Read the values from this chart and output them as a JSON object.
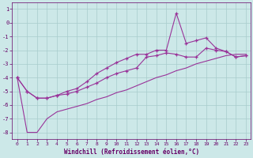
{
  "xlabel": "Windchill (Refroidissement éolien,°C)",
  "background_color": "#cce8e8",
  "grid_color": "#a8cccc",
  "line_color": "#993399",
  "xlim_min": -0.5,
  "xlim_max": 23.5,
  "ylim_min": -8.5,
  "ylim_max": 1.5,
  "xticks": [
    0,
    1,
    2,
    3,
    4,
    5,
    6,
    7,
    8,
    9,
    10,
    11,
    12,
    13,
    14,
    15,
    16,
    17,
    18,
    19,
    20,
    21,
    22,
    23
  ],
  "yticks": [
    -8,
    -7,
    -6,
    -5,
    -4,
    -3,
    -2,
    -1,
    0,
    1
  ],
  "line1_x": [
    0,
    1,
    2,
    3,
    4,
    5,
    6,
    7,
    8,
    9,
    10,
    11,
    12,
    13,
    14,
    15,
    16,
    17,
    18,
    19,
    20,
    21,
    22,
    23
  ],
  "line1_y": [
    -4.0,
    -5.0,
    -5.5,
    -5.5,
    -5.3,
    -5.2,
    -5.0,
    -4.7,
    -4.4,
    -4.0,
    -3.7,
    -3.5,
    -3.3,
    -2.5,
    -2.4,
    -2.2,
    -2.3,
    -2.5,
    -2.5,
    -1.85,
    -2.0,
    -2.1,
    -2.5,
    -2.4
  ],
  "line2_x": [
    0,
    1,
    2,
    3,
    4,
    5,
    6,
    7,
    8,
    9,
    10,
    11,
    12,
    13,
    14,
    15,
    16,
    17,
    18,
    19,
    20,
    21,
    22,
    23
  ],
  "line2_y": [
    -4.0,
    -5.0,
    -5.5,
    -5.5,
    -5.3,
    -5.0,
    -4.8,
    -4.3,
    -3.7,
    -3.3,
    -2.9,
    -2.6,
    -2.3,
    -2.3,
    -2.0,
    -2.0,
    0.7,
    -1.5,
    -1.3,
    -1.1,
    -1.85,
    -2.1,
    -2.5,
    -2.4
  ],
  "line3_x": [
    0,
    1,
    2,
    3,
    4,
    5,
    6,
    7,
    8,
    9,
    10,
    11,
    12,
    13,
    14,
    15,
    16,
    17,
    18,
    19,
    20,
    21,
    22,
    23
  ],
  "line3_y": [
    -4.0,
    -8.0,
    -8.0,
    -7.0,
    -6.5,
    -6.3,
    -6.1,
    -5.9,
    -5.6,
    -5.4,
    -5.1,
    -4.9,
    -4.6,
    -4.3,
    -4.0,
    -3.8,
    -3.5,
    -3.3,
    -3.0,
    -2.8,
    -2.6,
    -2.4,
    -2.3,
    -2.3
  ]
}
